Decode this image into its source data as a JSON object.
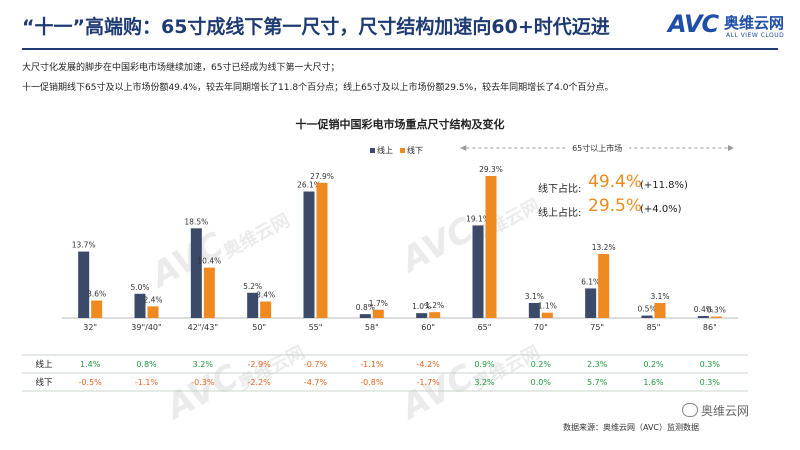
{
  "header": {
    "title": "“十一”高端购：65寸成线下第一尺寸，尺寸结构加速向60+时代迈进",
    "logo_mark": "AVC",
    "logo_cn": "奥维云网",
    "logo_en": "ALL VIEW CLOUD"
  },
  "intro": {
    "line1": "大尺寸化发展的脚步在中国彩电市场继续加速，65寸已经成为线下第一大尺寸；",
    "line2": "十一促销期线下65寸及以上市场份额49.4%，较去年同期增长了11.8个百分点；线上65寸及以上市场份额29.5%，较去年同期增长了4.0个百分点。"
  },
  "watermark": {
    "mark": "AVC",
    "cn": "奥维云网",
    "en": "ALL VIEW CLOUD"
  },
  "colors": {
    "online": "#3b4a68",
    "offline": "#ee8a1f",
    "positive": "#1e9c3c",
    "negative": "#e8651e"
  },
  "chart_data": {
    "type": "bar",
    "title": "十一促销中国彩电市场重点尺寸结构及变化",
    "categories": [
      "32\"",
      "39\"/40\"",
      "42\"/43\"",
      "50\"",
      "55\"",
      "58\"",
      "60\"",
      "65\"",
      "70\"",
      "75\"",
      "85\"",
      "86\""
    ],
    "series": [
      {
        "name": "线上",
        "color": "#3b4a68",
        "values": [
          13.7,
          5.0,
          18.5,
          5.2,
          26.1,
          0.8,
          1.0,
          19.1,
          3.1,
          6.1,
          0.5,
          0.4
        ],
        "labels": [
          "13.7%",
          "5.0%",
          "18.5%",
          "5.2%",
          "26.1%",
          "0.8%",
          "1.0%",
          "19.1%",
          "3.1%",
          "6.1%",
          "0.5%",
          "0.4%"
        ]
      },
      {
        "name": "线下",
        "color": "#ee8a1f",
        "values": [
          3.6,
          2.4,
          10.4,
          3.4,
          27.9,
          1.7,
          1.2,
          29.3,
          1.1,
          13.2,
          3.1,
          0.3
        ],
        "labels": [
          "3.6%",
          "2.4%",
          "10.4%",
          "3.4%",
          "27.9%",
          "1.7%",
          "1.2%",
          "29.3%",
          "1.1%",
          "13.2%",
          "3.1%",
          "0.3%"
        ]
      }
    ],
    "ylim": [
      0,
      32
    ],
    "legend_position": "top",
    "bracket_label": "65寸以上市场",
    "annotations": [
      {
        "label": "线下占比:",
        "value": "49.4%",
        "change": "(+11.8%)",
        "color": "#ee8a1f"
      },
      {
        "label": "线上占比:",
        "value": "29.5%",
        "change": "(+4.0%)",
        "color": "#ee8a1f"
      }
    ],
    "change_table": {
      "rows": [
        {
          "name": "线上",
          "values": [
            "1.4%",
            "0.8%",
            "3.2%",
            "-2.9%",
            "-0.7%",
            "-1.1%",
            "-4.2%",
            "0.9%",
            "0.2%",
            "2.3%",
            "0.2%",
            "0.3%"
          ]
        },
        {
          "name": "线下",
          "values": [
            "-0.5%",
            "-1.1%",
            "-0.3%",
            "-2.2%",
            "-4.7%",
            "-0.8%",
            "-1.7%",
            "3.2%",
            "0.0%",
            "5.7%",
            "1.6%",
            "0.3%"
          ]
        }
      ]
    }
  },
  "footer": {
    "source": "数据来源：奥维云网（AVC）监测数据",
    "wechat": "奥维云网"
  }
}
